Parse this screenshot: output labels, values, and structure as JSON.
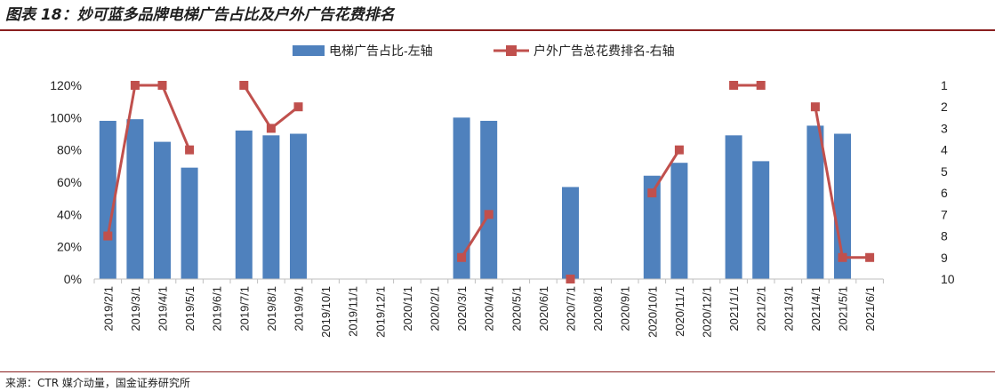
{
  "title": "图表 18：妙可蓝多品牌电梯广告占比及户外广告花费排名",
  "source": "来源：CTR 媒介动量，国金证券研究所",
  "colors": {
    "bar": "#4f81bd",
    "line": "#c0504d",
    "rule": "#8a1f1f"
  },
  "chart_data": {
    "type": "bar",
    "categories": [
      "2019/2/1",
      "2019/3/1",
      "2019/4/1",
      "2019/5/1",
      "2019/6/1",
      "2019/7/1",
      "2019/8/1",
      "2019/9/1",
      "2019/10/1",
      "2019/11/1",
      "2019/12/1",
      "2020/1/1",
      "2020/2/1",
      "2020/3/1",
      "2020/4/1",
      "2020/5/1",
      "2020/6/1",
      "2020/7/1",
      "2020/8/1",
      "2020/9/1",
      "2020/10/1",
      "2020/11/1",
      "2020/12/1",
      "2021/1/1",
      "2021/2/1",
      "2021/3/1",
      "2021/4/1",
      "2021/5/1",
      "2021/6/1"
    ],
    "series": [
      {
        "name": "电梯广告占比-左轴",
        "type": "bar",
        "axis": "left",
        "values": [
          0.98,
          0.99,
          0.85,
          0.69,
          null,
          0.92,
          0.89,
          0.9,
          null,
          null,
          null,
          null,
          null,
          1.0,
          0.98,
          null,
          null,
          0.57,
          null,
          null,
          0.64,
          0.72,
          null,
          0.89,
          0.73,
          null,
          0.95,
          0.9,
          null
        ]
      },
      {
        "name": "户外广告总花费排名-右轴",
        "type": "line",
        "axis": "right",
        "values": [
          8,
          1,
          1,
          4,
          null,
          1,
          3,
          2,
          null,
          null,
          null,
          null,
          null,
          9,
          7,
          null,
          null,
          10,
          null,
          null,
          6,
          4,
          null,
          1,
          1,
          null,
          2,
          9,
          9
        ]
      }
    ],
    "left_axis": {
      "ticks": [
        "0%",
        "20%",
        "40%",
        "60%",
        "80%",
        "100%",
        "120%"
      ],
      "ylim": [
        0,
        1.2
      ]
    },
    "right_axis": {
      "ticks": [
        "1",
        "2",
        "3",
        "4",
        "5",
        "6",
        "7",
        "8",
        "9",
        "10"
      ],
      "ylim": [
        1,
        10
      ],
      "inverted": true
    },
    "legend_position": "top-center",
    "grid": false
  }
}
